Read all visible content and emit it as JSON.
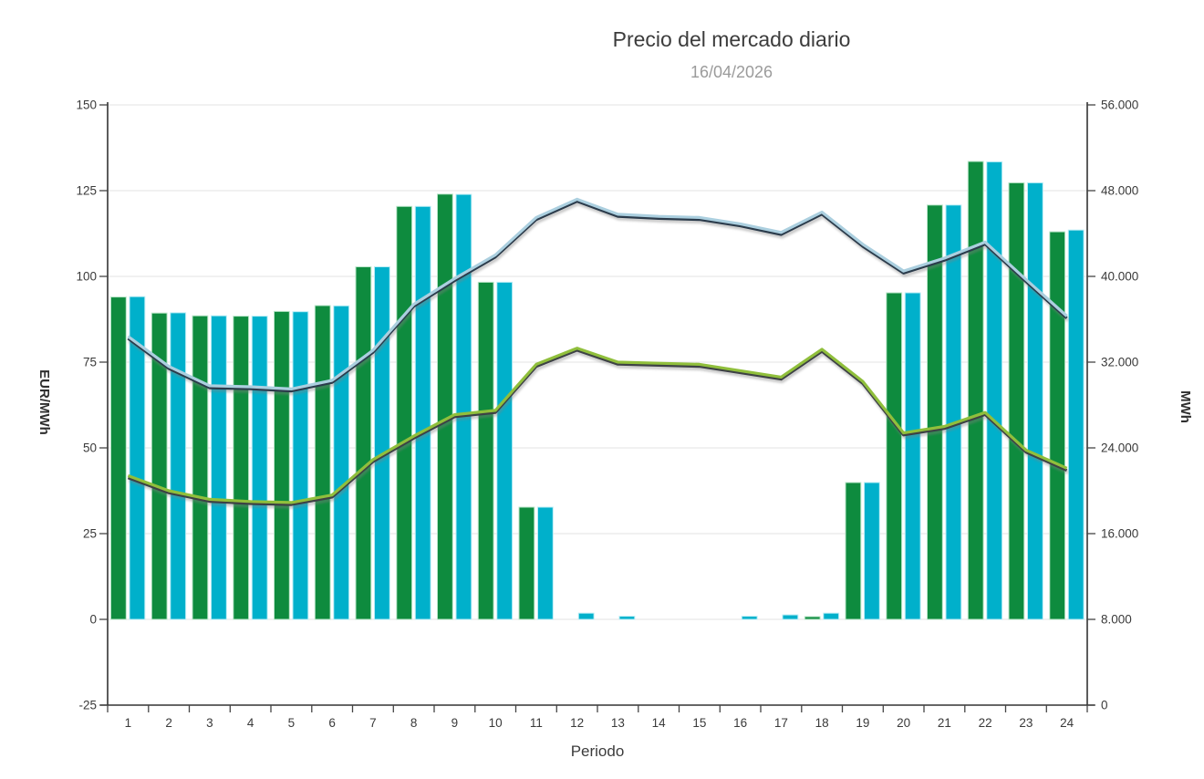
{
  "chart_data": {
    "type": "combo bar+line",
    "title": "Precio del mercado diario",
    "subtitle": "16/04/2026",
    "x_label": "Periodo",
    "y_left_label": "EUR/MWh",
    "y_right_label": "MWh",
    "legend": "none",
    "grid": "horizontal",
    "plot_bg": "#ffffff",
    "y_left_range": [
      -25,
      150
    ],
    "y_right_range": [
      0,
      56000
    ],
    "y_left_ticks": [
      "150",
      "125",
      "100",
      "75",
      "50",
      "25",
      "0",
      "-25"
    ],
    "y_left_tick_values": [
      150,
      125,
      100,
      75,
      50,
      25,
      0,
      -25
    ],
    "y_right_ticks": [
      "56.000",
      "48.000",
      "40.000",
      "32.000",
      "24.000",
      "16.000",
      "8.000",
      "0"
    ],
    "y_right_tick_values": [
      56000,
      48000,
      40000,
      32000,
      24000,
      16000,
      8000,
      0
    ],
    "categories": [
      "1",
      "2",
      "3",
      "4",
      "5",
      "6",
      "7",
      "8",
      "9",
      "10",
      "11",
      "12",
      "13",
      "14",
      "15",
      "16",
      "17",
      "18",
      "19",
      "20",
      "21",
      "22",
      "23",
      "24"
    ],
    "series": [
      {
        "id": "price-bars-green",
        "type": "bar",
        "axis": "left",
        "unit": "EUR/MWh",
        "color": "#0e8b3e",
        "edge": "#b9e5c9",
        "values": [
          94.0,
          89.3,
          88.5,
          88.4,
          89.8,
          91.5,
          102.8,
          120.4,
          124.0,
          98.3,
          32.7,
          0,
          0,
          0,
          0,
          0,
          0,
          0.8,
          39.9,
          95.2,
          120.8,
          133.5,
          127.3,
          113.0
        ]
      },
      {
        "id": "price-bars-cyan",
        "type": "bar",
        "axis": "left",
        "unit": "EUR/MWh",
        "color": "#00b0cb",
        "edge": "#b8ecf5",
        "values": [
          94.1,
          89.4,
          88.5,
          88.4,
          89.7,
          91.4,
          102.8,
          120.4,
          123.9,
          98.3,
          32.7,
          1.8,
          0.9,
          0,
          0,
          0.9,
          1.3,
          1.8,
          39.9,
          95.2,
          120.8,
          133.4,
          127.3,
          113.5
        ]
      },
      {
        "id": "energy-line-lightblue",
        "type": "line",
        "axis": "right",
        "unit": "MWh",
        "color": "#abcfdf",
        "shadow": "#2b3b4b",
        "values": [
          34400,
          31600,
          29800,
          29700,
          29500,
          30300,
          33100,
          37400,
          39800,
          42000,
          45500,
          47200,
          45800,
          45600,
          45500,
          44900,
          44100,
          46000,
          43000,
          40500,
          41700,
          43200,
          39700,
          36300
        ]
      },
      {
        "id": "energy-line-green",
        "type": "line",
        "axis": "right",
        "unit": "MWh",
        "color": "#90bf3c",
        "shadow": "#3d4145",
        "values": [
          21400,
          20000,
          19200,
          19000,
          18900,
          19600,
          22900,
          25100,
          27100,
          27500,
          31800,
          33300,
          32000,
          31900,
          31800,
          31200,
          30600,
          33200,
          30200,
          25400,
          26000,
          27300,
          23800,
          22100
        ]
      }
    ]
  }
}
